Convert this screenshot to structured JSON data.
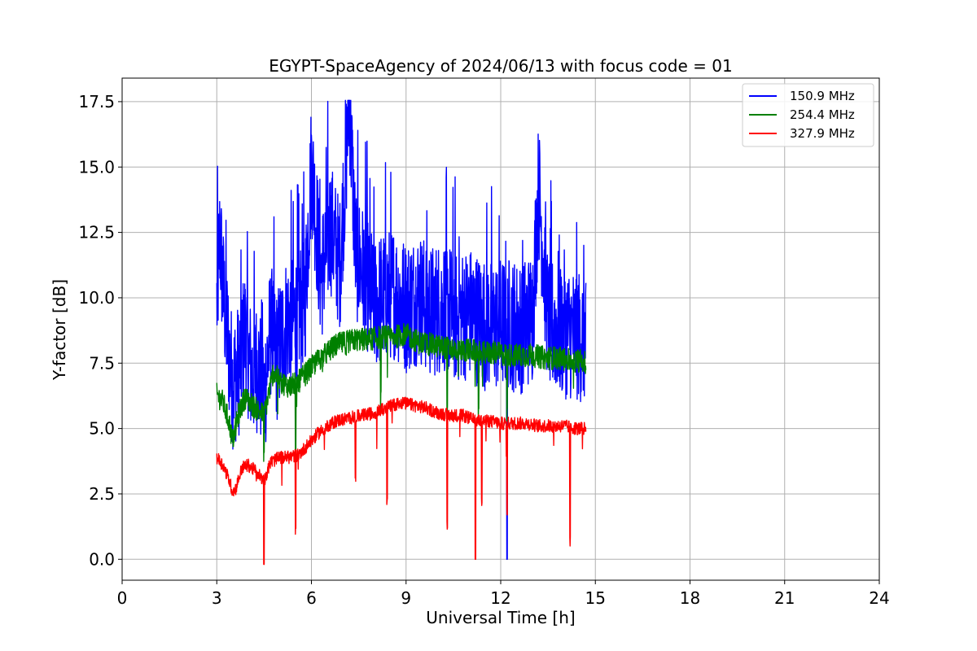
{
  "chart_data": {
    "type": "line",
    "title": "EGYPT-SpaceAgency of 2024/06/13 with focus code = 01",
    "xlabel": "Universal Time [h]",
    "ylabel": "Y-factor [dB]",
    "xlim": [
      0,
      24
    ],
    "ylim": [
      -0.8,
      18.4
    ],
    "xticks": [
      0,
      3,
      6,
      9,
      12,
      15,
      18,
      21,
      24
    ],
    "yticks": [
      0.0,
      2.5,
      5.0,
      7.5,
      10.0,
      12.5,
      15.0,
      17.5
    ],
    "ytick_labels": [
      "0.0",
      "2.5",
      "5.0",
      "7.5",
      "10.0",
      "12.5",
      "15.0",
      "17.5"
    ],
    "grid": true,
    "legend_position": "top-right",
    "series": [
      {
        "name": "150.9 MHz",
        "color": "#0000ff",
        "x": [
          3.0,
          3.1,
          3.2,
          3.4,
          3.5,
          3.7,
          3.9,
          4.1,
          4.3,
          4.5,
          4.7,
          4.9,
          5.2,
          5.5,
          5.8,
          6.0,
          6.3,
          6.6,
          6.9,
          7.1,
          7.2,
          7.4,
          7.7,
          8.0,
          8.3,
          8.6,
          9.0,
          9.4,
          9.8,
          10.2,
          10.6,
          11.0,
          11.4,
          11.8,
          12.2,
          12.6,
          13.0,
          13.2,
          13.5,
          13.9,
          14.3,
          14.7
        ],
        "y": [
          9.5,
          12.1,
          10.0,
          7.5,
          6.5,
          7.0,
          8.5,
          6.8,
          7.2,
          6.0,
          8.5,
          7.5,
          8.8,
          9.0,
          9.8,
          14.9,
          10.5,
          12.5,
          11.0,
          15.1,
          17.5,
          11.5,
          10.5,
          9.5,
          9.8,
          10.0,
          9.4,
          9.8,
          9.2,
          9.5,
          9.0,
          9.2,
          8.8,
          8.7,
          8.8,
          8.6,
          9.0,
          14.0,
          8.8,
          8.5,
          8.4,
          8.2
        ],
        "min": 0.0,
        "max": 17.55
      },
      {
        "name": "254.4 MHz",
        "color": "#008000",
        "x": [
          3.0,
          3.2,
          3.4,
          3.5,
          3.7,
          3.9,
          4.2,
          4.5,
          4.8,
          5.0,
          5.3,
          5.6,
          5.9,
          6.2,
          6.5,
          6.8,
          7.1,
          7.4,
          7.8,
          8.2,
          8.6,
          9.0,
          9.4,
          9.8,
          10.2,
          10.6,
          11.0,
          11.4,
          11.8,
          12.2,
          12.6,
          13.0,
          13.4,
          13.8,
          14.2,
          14.7
        ],
        "y": [
          6.3,
          6.0,
          5.2,
          4.5,
          5.6,
          6.2,
          5.8,
          5.5,
          7.2,
          6.8,
          6.6,
          6.8,
          7.2,
          7.6,
          7.9,
          8.2,
          8.3,
          8.4,
          8.4,
          8.5,
          8.5,
          8.6,
          8.3,
          8.2,
          8.1,
          8.0,
          8.0,
          7.9,
          7.9,
          7.8,
          7.8,
          7.8,
          7.7,
          7.7,
          7.6,
          7.6
        ]
      },
      {
        "name": "327.9 MHz",
        "color": "#ff0000",
        "x": [
          3.0,
          3.2,
          3.4,
          3.5,
          3.6,
          3.8,
          4.0,
          4.3,
          4.5,
          4.7,
          5.0,
          5.3,
          5.6,
          5.9,
          6.2,
          6.5,
          6.8,
          7.2,
          7.6,
          8.0,
          8.4,
          8.8,
          9.2,
          9.6,
          10.0,
          10.4,
          10.8,
          11.2,
          11.6,
          12.0,
          12.4,
          12.8,
          13.2,
          13.6,
          14.0,
          14.4,
          14.7
        ],
        "y": [
          3.9,
          3.6,
          3.0,
          2.6,
          2.7,
          3.5,
          3.6,
          3.3,
          3.0,
          3.7,
          3.9,
          3.9,
          4.0,
          4.4,
          4.8,
          5.1,
          5.3,
          5.4,
          5.5,
          5.6,
          5.8,
          6.0,
          5.9,
          5.8,
          5.6,
          5.5,
          5.5,
          5.3,
          5.3,
          5.2,
          5.2,
          5.2,
          5.1,
          5.1,
          5.1,
          5.0,
          5.0
        ]
      }
    ]
  }
}
